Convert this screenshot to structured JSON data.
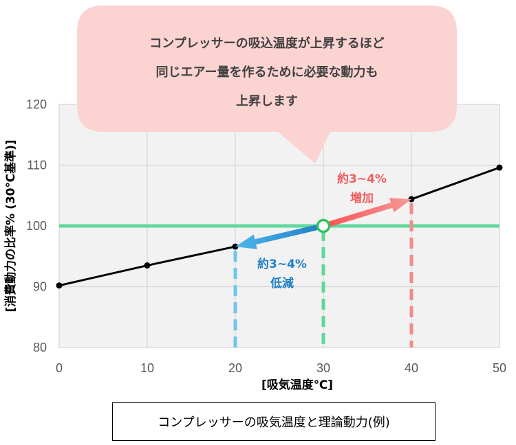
{
  "chart_data": {
    "type": "line",
    "x": [
      0,
      10,
      20,
      30,
      40,
      50
    ],
    "series": [
      {
        "values": [
          90.2,
          93.5,
          96.6,
          100,
          104.4,
          109.6
        ]
      }
    ],
    "xlim": [
      0,
      50
    ],
    "ylim": [
      80,
      120
    ],
    "x_ticks": [
      "0",
      "10",
      "20",
      "30",
      "40",
      "50"
    ],
    "y_ticks": [
      "80",
      "90",
      "100",
      "110",
      "120"
    ],
    "xlabel": "[吸気温度℃]",
    "ylabel": "[消費動力の比率% (30℃基準)]",
    "grid": true,
    "reference_line": {
      "y": 100,
      "color": "#5fd89a"
    },
    "marked_point": {
      "x": 30,
      "y": 100
    },
    "drop_lines": [
      {
        "x": 20,
        "color": "#6ec6ec"
      },
      {
        "x": 30,
        "color": "#5fd89a"
      },
      {
        "x": 40,
        "color": "#f28b8b"
      }
    ],
    "annotations": {
      "increase": {
        "line1": "約3~4%",
        "line2": "増加",
        "color": "#f25c5c",
        "from_x": 30,
        "to_x": 40
      },
      "decrease": {
        "line1": "約3~4%",
        "line2": "低減",
        "color": "#1f7fc6",
        "from_x": 30,
        "to_x": 20
      }
    }
  },
  "callout": {
    "lines": [
      "コンプレッサーの吸込温度が上昇するほど",
      "同じエアー量を作るために必要な動力も",
      "上昇します"
    ],
    "fill": "#fbd3d1"
  },
  "caption": "コンプレッサーの吸気温度と理論動力(例)"
}
